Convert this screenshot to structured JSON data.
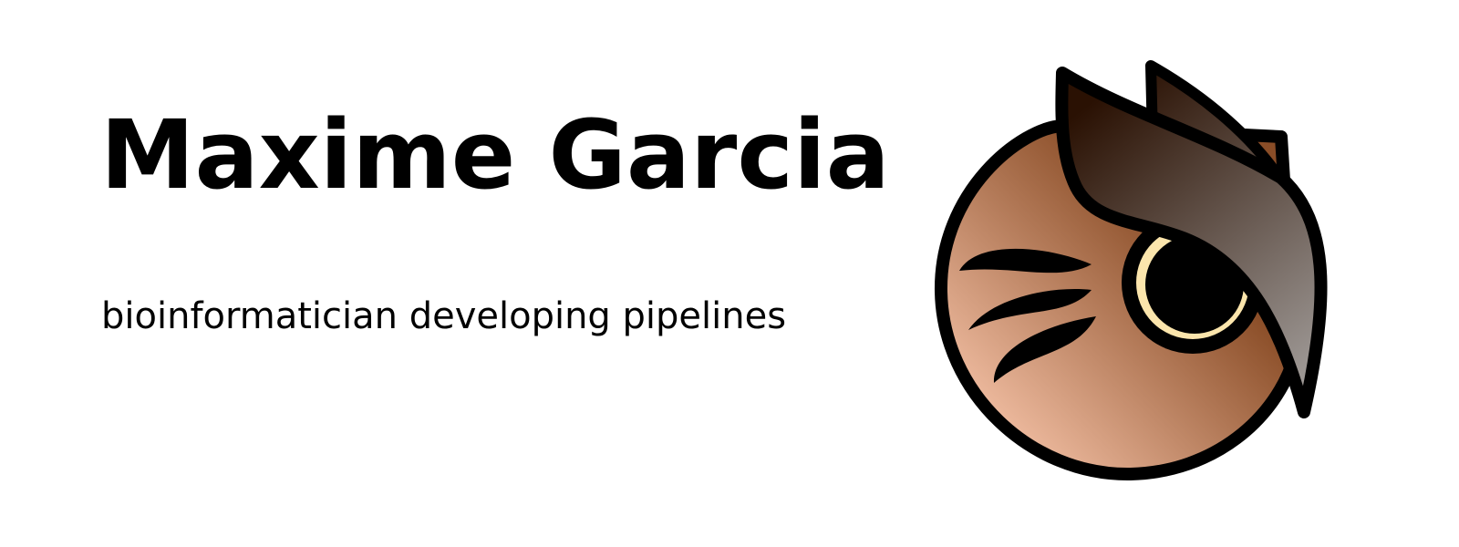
{
  "banner": {
    "name": "Maxime Garcia",
    "tagline": "bioinformatician developing pipelines"
  },
  "logo": {
    "icon": "owl-mascot-icon",
    "colors": {
      "outline": "#000000",
      "face_light": "#f5c2a7",
      "face_dark": "#8a4d27",
      "feather_dark": "#2a1103",
      "feather_light": "#a19c99",
      "eye_ring": "#fbe5ac",
      "pupil": "#000000"
    }
  }
}
